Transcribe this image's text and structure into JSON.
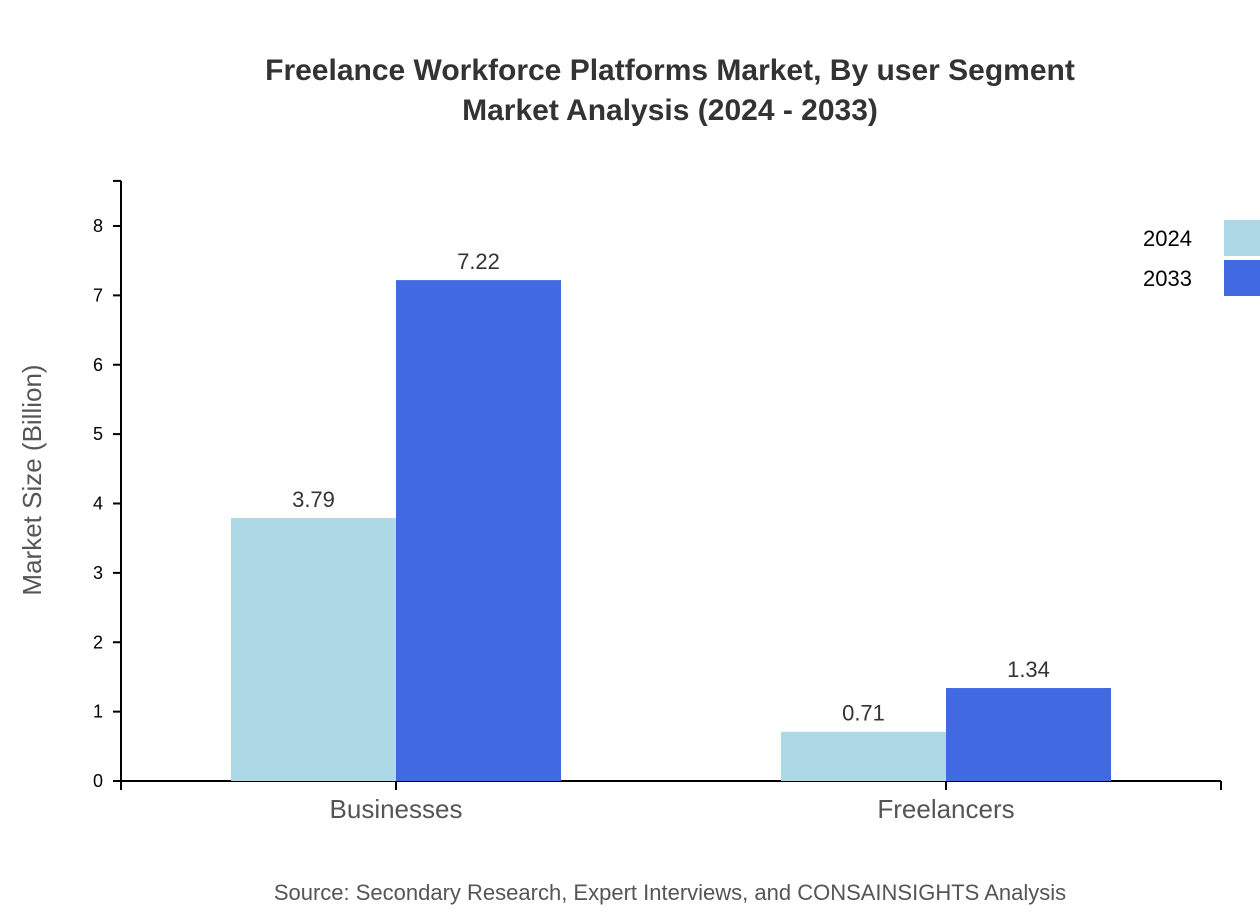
{
  "chart_data": {
    "type": "bar",
    "title": "Freelance Workforce Platforms Market, By user Segment",
    "subtitle": "Market Analysis (2024 - 2033)",
    "xlabel": "",
    "ylabel": "Market Size (Billion)",
    "categories": [
      "Businesses",
      "Freelancers"
    ],
    "series": [
      {
        "name": "2024",
        "values": [
          3.79,
          0.71
        ],
        "color": "#add8e6"
      },
      {
        "name": "2033",
        "values": [
          7.22,
          1.34
        ],
        "color": "#4169e1"
      }
    ],
    "ylim": [
      0,
      8.65
    ],
    "yticks": [
      0,
      1,
      2,
      3,
      4,
      5,
      6,
      7,
      8
    ],
    "grid": false,
    "legend_position": "top-right",
    "source": "Source: Secondary Research, Expert Interviews, and CONSAINSIGHTS Analysis"
  }
}
